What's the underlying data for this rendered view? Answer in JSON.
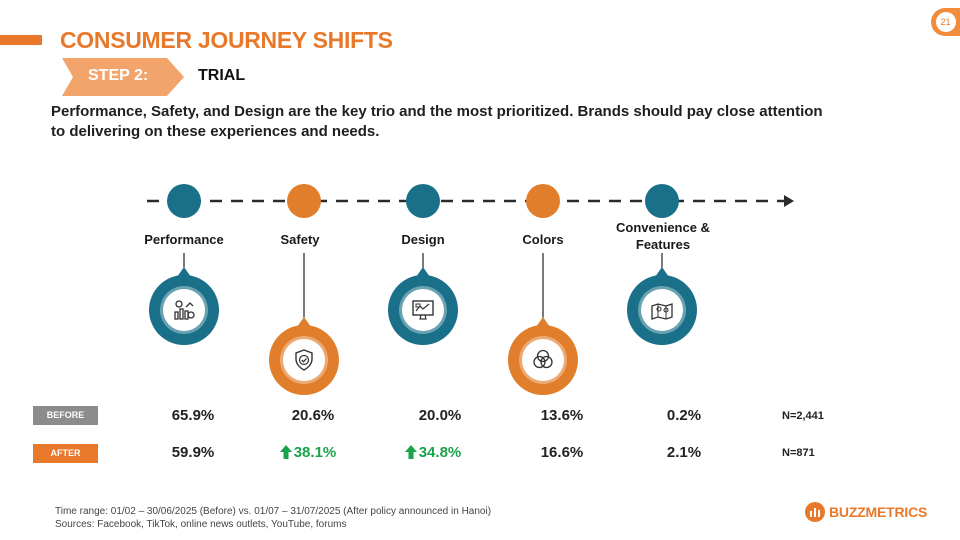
{
  "header": {
    "title": "CONSUMER JOURNEY SHIFTS",
    "page_number": "21"
  },
  "step": {
    "label": "STEP 2:",
    "name": "TRIAL"
  },
  "intro": "Performance, Safety, and Design are the key trio and the most prioritized. Brands should pay close attention to delivering on these experiences and needs.",
  "stages": [
    {
      "label": "Performance",
      "icon": "performance-chart-icon",
      "color": "#1b7089"
    },
    {
      "label": "Safety",
      "icon": "shield-check-icon",
      "color": "#e07e2c"
    },
    {
      "label": "Design",
      "icon": "design-monitor-icon",
      "color": "#1b7089"
    },
    {
      "label": "Colors",
      "icon": "color-circles-icon",
      "color": "#e07e2c"
    },
    {
      "label": "Convenience & Features",
      "icon": "map-location-icon",
      "color": "#1b7089"
    }
  ],
  "rows": {
    "before_label": "BEFORE",
    "after_label": "AFTER",
    "before": [
      "65.9%",
      "20.6%",
      "20.0%",
      "13.6%",
      "0.2%"
    ],
    "after": [
      "59.9%",
      "38.1%",
      "34.8%",
      "16.6%",
      "2.1%"
    ],
    "after_increase_flags": [
      false,
      true,
      true,
      false,
      false
    ],
    "before_n": "N=2,441",
    "after_n": "N=871"
  },
  "footnote": {
    "line1": "Time range: 01/02 – 30/06/2025 (Before) vs. 01/07 – 31/07/2025 (After policy announced in Hanoi)",
    "line2": "Sources: Facebook, TikTok, online news outlets, YouTube, forums"
  },
  "logo": {
    "text": "BUZZMETRICS"
  },
  "colors": {
    "accent": "#e8792b",
    "teal": "#1b7089",
    "increase": "#1aa34a"
  }
}
